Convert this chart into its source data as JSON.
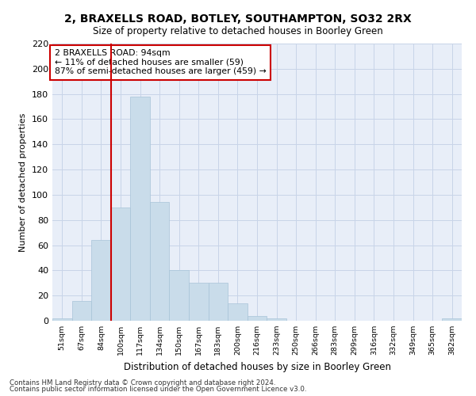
{
  "title1": "2, BRAXELLS ROAD, BOTLEY, SOUTHAMPTON, SO32 2RX",
  "title2": "Size of property relative to detached houses in Boorley Green",
  "xlabel": "Distribution of detached houses by size in Boorley Green",
  "ylabel": "Number of detached properties",
  "footnote1": "Contains HM Land Registry data © Crown copyright and database right 2024.",
  "footnote2": "Contains public sector information licensed under the Open Government Licence v3.0.",
  "bin_labels": [
    "51sqm",
    "67sqm",
    "84sqm",
    "100sqm",
    "117sqm",
    "134sqm",
    "150sqm",
    "167sqm",
    "183sqm",
    "200sqm",
    "216sqm",
    "233sqm",
    "250sqm",
    "266sqm",
    "283sqm",
    "299sqm",
    "316sqm",
    "332sqm",
    "349sqm",
    "365sqm",
    "382sqm"
  ],
  "bar_values": [
    2,
    16,
    64,
    90,
    178,
    94,
    40,
    30,
    30,
    14,
    4,
    2,
    0,
    0,
    0,
    0,
    0,
    0,
    0,
    0,
    2
  ],
  "bar_color": "#c9dcea",
  "bar_edge_color": "#a8c4d8",
  "grid_color": "#c8d4e8",
  "background_color": "#e8eef8",
  "vline_bin_index": 2,
  "vline_color": "#cc0000",
  "ylim": [
    0,
    220
  ],
  "yticks": [
    0,
    20,
    40,
    60,
    80,
    100,
    120,
    140,
    160,
    180,
    200,
    220
  ],
  "annotation_text": "2 BRAXELLS ROAD: 94sqm\n← 11% of detached houses are smaller (59)\n87% of semi-detached houses are larger (459) →",
  "annotation_box_color": "#ffffff",
  "annotation_border_color": "#cc0000"
}
